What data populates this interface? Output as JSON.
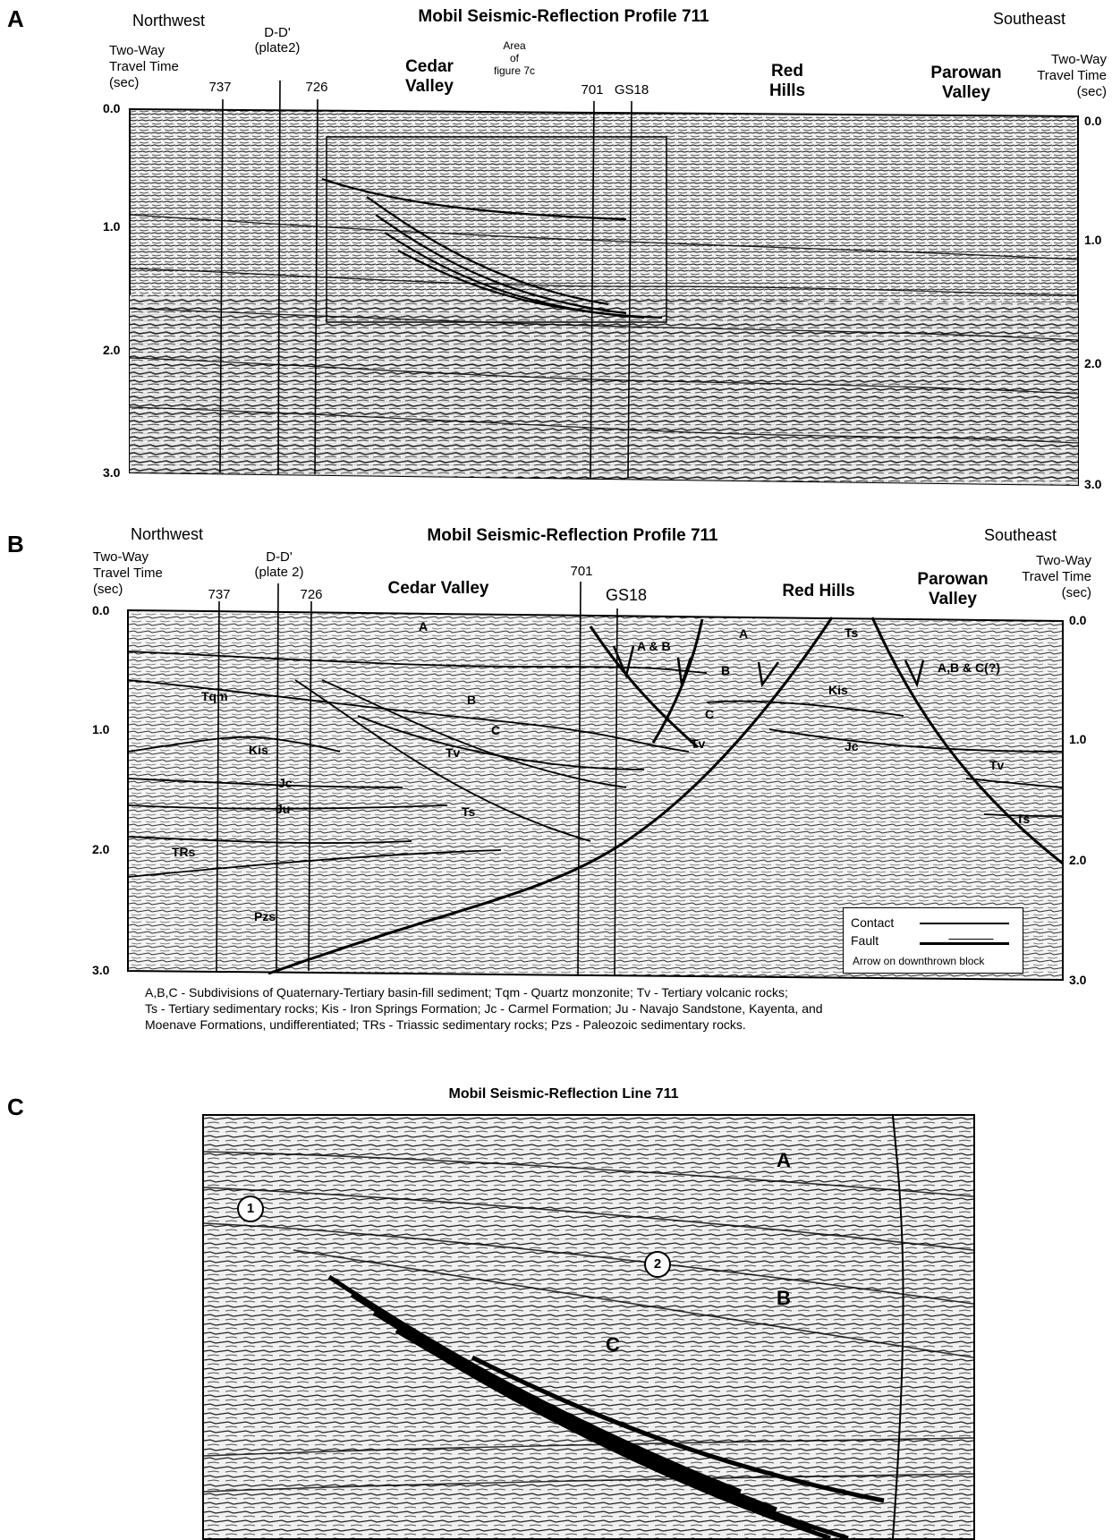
{
  "panelA": {
    "letter": "A",
    "title": "Mobil Seismic-Reflection Profile 711",
    "northwest": "Northwest",
    "southeast": "Southeast",
    "axis_left": [
      "Two-Way",
      "Travel Time",
      "(sec)"
    ],
    "axis_right": [
      "Two-Way",
      "Travel Time",
      "(sec)"
    ],
    "ticks_left": [
      "0.0",
      "1.0",
      "2.0",
      "3.0"
    ],
    "ticks_right": [
      "0.0",
      "1.0",
      "2.0",
      "3.0"
    ],
    "dd": [
      "D-D'",
      "(plate2)"
    ],
    "wells": [
      "737",
      "726",
      "701",
      "GS18"
    ],
    "places": {
      "cedar": [
        "Cedar",
        "Valley"
      ],
      "red": [
        "Red",
        "Hills"
      ],
      "parowan": [
        "Parowan",
        "Valley"
      ]
    },
    "area_note": [
      "Area",
      "of",
      "figure 7c"
    ]
  },
  "panelB": {
    "letter": "B",
    "title": "Mobil Seismic-Reflection Profile 711",
    "northwest": "Northwest",
    "southeast": "Southeast",
    "axis_left": [
      "Two-Way",
      "Travel Time",
      "(sec)"
    ],
    "axis_right": [
      "Two-Way",
      "Travel Time",
      "(sec)"
    ],
    "ticks_left": [
      "0.0",
      "1.0",
      "2.0",
      "3.0"
    ],
    "ticks_right": [
      "0.0",
      "1.0",
      "2.0",
      "3.0"
    ],
    "dd": [
      "D-D'",
      "(plate 2)"
    ],
    "wells": [
      "737",
      "726",
      "701",
      "GS18"
    ],
    "places": {
      "cedar": "Cedar Valley",
      "red": "Red Hills",
      "parowan": [
        "Parowan",
        "Valley"
      ]
    },
    "units": {
      "a1": "A",
      "b1": "B",
      "ab": "A & B",
      "a2": "A",
      "ts_top": "Ts",
      "b2": "B",
      "abc": "A,B & C(?)",
      "tqm": "Tqm",
      "c1": "C",
      "c2": "C",
      "kis_r": "Kis",
      "kis_l": "Kis",
      "tv1": "Tv",
      "tv2": "Tv",
      "jc_r": "Jc",
      "tv3": "Tv",
      "jc_l": "Jc",
      "ju": "Ju",
      "ts_mid": "Ts",
      "ts_r": "Ts",
      "trs": "TRs",
      "pzs": "Pzs"
    },
    "legend": {
      "contact": "Contact",
      "fault": "Fault",
      "note": "Arrow on downthrown block"
    },
    "caption": [
      "A,B,C - Subdivisions of Quaternary-Tertiary basin-fill sediment;  Tqm - Quartz monzonite;  Tv - Tertiary volcanic rocks;",
      "Ts - Tertiary sedimentary rocks;  Kis - Iron Springs Formation;  Jc - Carmel Formation;  Ju - Navajo Sandstone, Kayenta, and",
      "Moenave Formations, undifferentiated;  TRs - Triassic sedimentary rocks;  Pzs - Paleozoic sedimentary rocks."
    ]
  },
  "panelC": {
    "letter": "C",
    "title": "Mobil Seismic-Reflection Line 711",
    "labels": {
      "a": "A",
      "b": "B",
      "c": "C",
      "one": "1",
      "two": "2"
    }
  }
}
